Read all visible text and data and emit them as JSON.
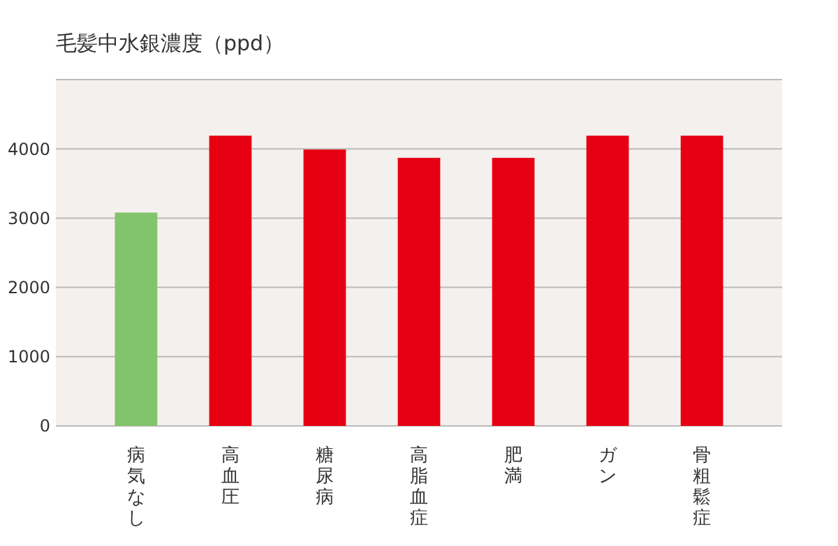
{
  "chart_data": {
    "type": "bar",
    "title": "毛髪中水銀濃度（ppd）",
    "categories": [
      "病気なし",
      "高血圧",
      "糖尿病",
      "高脂血症",
      "肥満",
      "ガン",
      "骨粗鬆症"
    ],
    "values": [
      3080,
      4190,
      3990,
      3870,
      3870,
      4190,
      4190
    ],
    "colors": [
      "#82c46c",
      "#e60012",
      "#e60012",
      "#e60012",
      "#e60012",
      "#e60012",
      "#e60012"
    ],
    "ylim": [
      0,
      5000
    ],
    "yticks": [
      0,
      1000,
      2000,
      3000,
      4000,
      {
        "value": 5000,
        "label": null
      }
    ],
    "grid": "y"
  }
}
